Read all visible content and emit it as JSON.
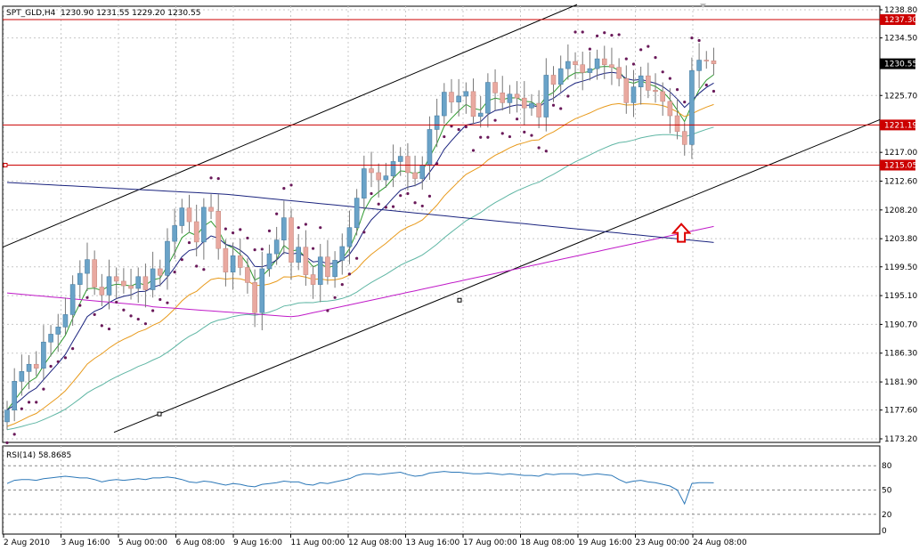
{
  "header": {
    "symbol": "SPT_GLD,H4",
    "ohlc": "1230.90 1231.55 1229.20 1230.55"
  },
  "chart_data": [
    {
      "type": "candlestick",
      "symbol": "SPT_GLD",
      "timeframe": "H4",
      "ylim": [
        1173.2,
        1238.8
      ],
      "y_ticks": [
        "1238.80",
        "1234.50",
        "1230.55",
        "1225.70",
        "1221.19",
        "1217.00",
        "1215.05",
        "1212.60",
        "1208.20",
        "1203.80",
        "1199.50",
        "1195.10",
        "1190.70",
        "1186.30",
        "1181.90",
        "1177.60",
        "1173.20"
      ],
      "x_ticks": [
        "2 Aug 2010",
        "3 Aug 16:00",
        "5 Aug 00:00",
        "6 Aug 08:00",
        "9 Aug 16:00",
        "11 Aug 00:00",
        "12 Aug 08:00",
        "13 Aug 16:00",
        "17 Aug 00:00",
        "18 Aug 08:00",
        "19 Aug 16:00",
        "23 Aug 00:00",
        "24 Aug 08:00"
      ],
      "horizontal_levels": [
        {
          "value": 1237.3,
          "label": "1237.30"
        },
        {
          "value": 1221.19,
          "label": "1221.19"
        },
        {
          "value": 1215.05,
          "label": "1215.05"
        }
      ],
      "current_price": {
        "value": 1230.55,
        "label": "1230.55"
      },
      "close": [
        1177.6,
        1182.0,
        1183.5,
        1184.6,
        1184.0,
        1188.0,
        1189.2,
        1190.3,
        1192.2,
        1196.8,
        1198.5,
        1200.6,
        1196.4,
        1195.2,
        1198.0,
        1197.3,
        1196.6,
        1196.2,
        1198.0,
        1196.0,
        1199.2,
        1198.2,
        1203.4,
        1205.8,
        1208.5,
        1206.4,
        1203.3,
        1208.6,
        1208.0,
        1202.3,
        1198.7,
        1201.2,
        1199.4,
        1197.1,
        1192.5,
        1199.2,
        1201.5,
        1203.6,
        1207.0,
        1200.2,
        1202.5,
        1198.3,
        1196.8,
        1201.0,
        1198.0,
        1200.5,
        1202.6,
        1205.5,
        1210.0,
        1214.5,
        1213.9,
        1212.8,
        1213.4,
        1215.6,
        1216.4,
        1213.9,
        1213.0,
        1215.0,
        1220.5,
        1222.6,
        1226.2,
        1224.7,
        1225.6,
        1226.3,
        1222.5,
        1223.0,
        1227.7,
        1226.1,
        1224.6,
        1225.9,
        1225.3,
        1223.8,
        1224.5,
        1222.4,
        1228.8,
        1227.4,
        1229.8,
        1230.9,
        1230.4,
        1229.2,
        1229.8,
        1231.3,
        1230.4,
        1230.0,
        1228.3,
        1224.6,
        1227.0,
        1228.7,
        1226.5,
        1226.3,
        1224.8,
        1222.6,
        1220.2,
        1218.2,
        1229.5,
        1231.1,
        1231.0,
        1230.55
      ],
      "indicators": [
        "Moving Average (green)",
        "Moving Average (navy)",
        "Moving Average (orange)",
        "Moving Average (teal)",
        "Moving Average (magenta)",
        "Moving Average (dark blue)",
        "Parabolic SAR",
        "Channel lines"
      ]
    },
    {
      "type": "line",
      "name": "RSI(14)",
      "title": "RSI(14) 58.8685",
      "ylim": [
        0,
        100
      ],
      "levels": [
        "80",
        "50",
        "20",
        "0"
      ],
      "values": [
        58,
        62,
        63,
        63,
        62,
        64,
        65,
        66,
        67,
        66,
        65,
        65,
        63,
        60,
        62,
        63,
        62,
        63,
        64,
        63,
        65,
        65,
        66,
        65,
        63,
        60,
        59,
        61,
        60,
        58,
        56,
        58,
        57,
        55,
        54,
        57,
        58,
        59,
        61,
        60,
        60,
        57,
        56,
        59,
        58,
        60,
        62,
        64,
        68,
        70,
        70,
        69,
        70,
        71,
        72,
        69,
        67,
        68,
        71,
        72,
        73,
        72,
        72,
        71,
        70,
        70,
        71,
        70,
        69,
        70,
        69,
        68,
        68,
        67,
        70,
        69,
        70,
        70,
        70,
        68,
        69,
        70,
        69,
        68,
        63,
        59,
        61,
        62,
        60,
        59,
        57,
        55,
        50,
        33,
        58,
        59,
        59,
        58.9
      ]
    }
  ],
  "annotation": {
    "arrow": "up-arrow",
    "color": "#dd0000"
  },
  "colors": {
    "bull": "#6aa3c8",
    "bear": "#e9a9a0",
    "resistance": "#cc0000",
    "sar": "#6a1a5a",
    "ma_fast": "#2f9a2f",
    "ma_mid": "#1a237e",
    "ma_orange": "#e89a1c",
    "ma_teal": "#5fb6a4",
    "ma_magenta": "#c01ac8",
    "ma_long": "#1a237e"
  }
}
